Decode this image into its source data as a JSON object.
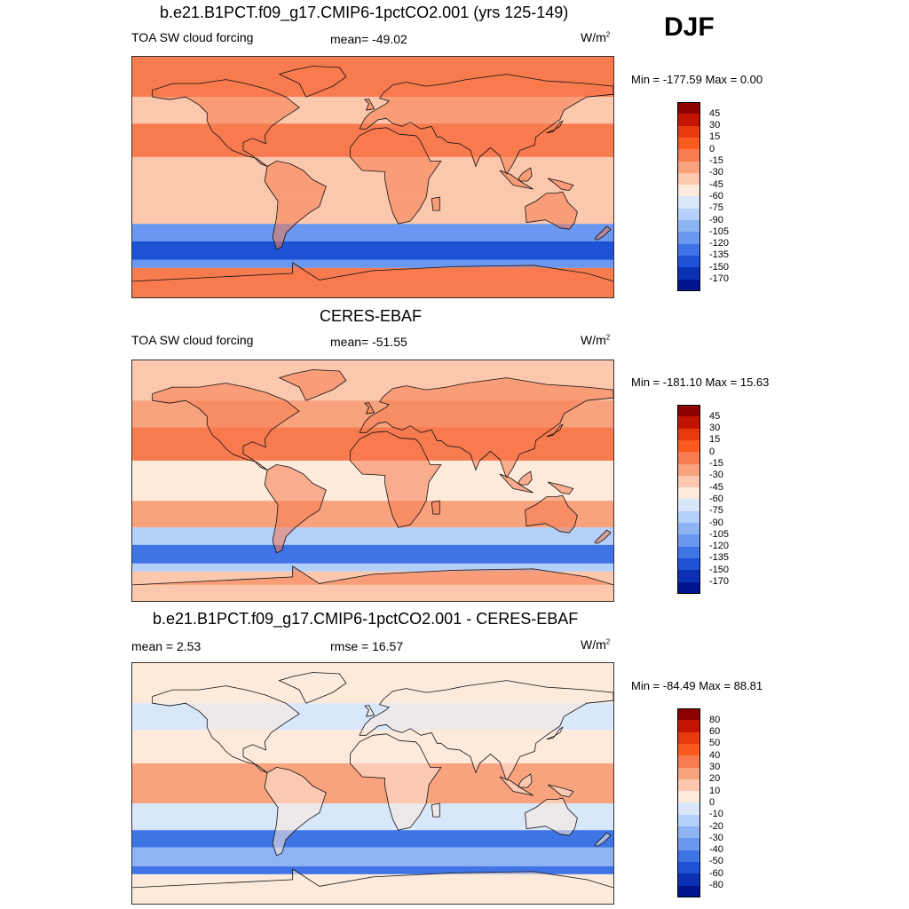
{
  "season": "DJF",
  "panels": [
    {
      "title": "b.e21.B1PCT.f09_g17.CMIP6-1pctCO2.001 (yrs 125-149)",
      "left_label": "TOA SW cloud forcing",
      "center_label": "mean= -49.02",
      "units_base": "W/m",
      "units_exp": "2",
      "minmax": "Min = -177.59 Max =   0.00",
      "levels": [
        "45",
        "30",
        "15",
        "0",
        "-15",
        "-30",
        "-45",
        "-60",
        "-75",
        "-90",
        "-105",
        "-120",
        "-135",
        "-150",
        "-170"
      ],
      "colors": [
        "#8c0000",
        "#c21400",
        "#e83a0e",
        "#fb5a1f",
        "#f87a4f",
        "#f9a27e",
        "#fbc7ad",
        "#fdeadb",
        "#d9e7fb",
        "#b4cff8",
        "#8fb4f4",
        "#6a97ef",
        "#3e74e6",
        "#1e52d6",
        "#0a30b4",
        "#001490"
      ],
      "fields": {
        "land": "#f87a4f",
        "trop": "#fbc7ad",
        "midlat": "#fbc7ad",
        "storm": "#1e52d6",
        "coast": "#6a97ef",
        "polar": "#f87a4f"
      }
    },
    {
      "title": "CERES-EBAF",
      "left_label": "TOA SW cloud forcing",
      "center_label": "mean= -51.55",
      "units_base": "W/m",
      "units_exp": "2",
      "minmax": "Min = -181.10 Max =  15.63",
      "levels": [
        "45",
        "30",
        "15",
        "0",
        "-15",
        "-30",
        "-45",
        "-60",
        "-75",
        "-90",
        "-105",
        "-120",
        "-135",
        "-150",
        "-170"
      ],
      "colors": [
        "#8c0000",
        "#c21400",
        "#e83a0e",
        "#fb5a1f",
        "#f87a4f",
        "#f9a27e",
        "#fbc7ad",
        "#fdeadb",
        "#d9e7fb",
        "#b4cff8",
        "#8fb4f4",
        "#6a97ef",
        "#3e74e6",
        "#1e52d6",
        "#0a30b4",
        "#001490"
      ],
      "fields": {
        "land": "#f87a4f",
        "trop": "#fdeadb",
        "midlat": "#f9a27e",
        "storm": "#3e74e6",
        "coast": "#b4cff8",
        "polar": "#fbc7ad"
      }
    },
    {
      "title": "b.e21.B1PCT.f09_g17.CMIP6-1pctCO2.001 - CERES-EBAF",
      "left_label": "mean =   2.53",
      "center_label": "rmse =  16.57",
      "units_base": "W/m",
      "units_exp": "2",
      "minmax": "Min = -84.49 Max =  88.81",
      "levels": [
        "80",
        "60",
        "50",
        "40",
        "30",
        "20",
        "10",
        "0",
        "-10",
        "-20",
        "-30",
        "-40",
        "-50",
        "-60",
        "-80"
      ],
      "colors": [
        "#8c0000",
        "#c21400",
        "#e83a0e",
        "#fb5a1f",
        "#f87a4f",
        "#f9a27e",
        "#fbc7ad",
        "#fdeadb",
        "#d9e7fb",
        "#b4cff8",
        "#8fb4f4",
        "#6a97ef",
        "#3e74e6",
        "#1e52d6",
        "#0a30b4",
        "#001490"
      ],
      "fields": {
        "land": "#fdeadb",
        "trop": "#f9a27e",
        "midlat": "#d9e7fb",
        "storm": "#8fb4f4",
        "coast": "#3e74e6",
        "polar": "#fdeadb"
      }
    }
  ]
}
